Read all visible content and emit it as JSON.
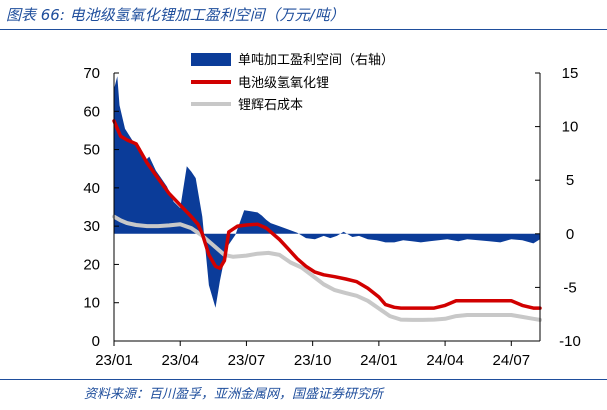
{
  "header": {
    "title": "图表 66:  电池级氢氧化锂加工盈利空间（万元/吨）"
  },
  "footer": {
    "source": "资料来源：百川盈孚，亚洲金属网，国盛证券研究所"
  },
  "chart_data": {
    "type": "area+line",
    "title": "电池级氢氧化锂加工盈利空间（万元/吨）",
    "x_tick_labels": [
      "23/01",
      "23/04",
      "23/07",
      "23/10",
      "24/01",
      "24/04",
      "24/07"
    ],
    "left_axis": {
      "ylim": [
        0,
        70
      ],
      "ticks": [
        "0",
        "10",
        "20",
        "30",
        "40",
        "50",
        "60",
        "70"
      ]
    },
    "right_axis": {
      "ylim": [
        -10,
        15
      ],
      "ticks": [
        "-10",
        "-5",
        "0",
        "5",
        "10",
        "15"
      ]
    },
    "legend": [
      "单吨加工盈利空间（右轴）",
      "电池级氢氧化锂",
      "锂辉石成本"
    ],
    "colors": {
      "profit": "#0b3c99",
      "lithium": "#d10000",
      "spodumene": "#c8c8c8"
    },
    "x_domain": [
      0,
      19.3
    ],
    "series": [
      {
        "name": "单吨加工盈利空间（右轴）",
        "axis": "right",
        "type": "area",
        "x": [
          0,
          0.15,
          0.25,
          0.5,
          0.9,
          1.2,
          1.4,
          1.6,
          1.9,
          2.1,
          2.4,
          2.7,
          3.0,
          3.3,
          3.5,
          3.7,
          4.0,
          4.3,
          4.6,
          4.8,
          5.1,
          5.5,
          5.9,
          6.2,
          6.5,
          6.7,
          6.9,
          7.1,
          7.5,
          7.9,
          8.3,
          8.7,
          9.1,
          9.5,
          9.8,
          10.1,
          10.4,
          10.8,
          11.1,
          11.5,
          11.9,
          12.3,
          12.7,
          13.1,
          13.5,
          13.9,
          14.3,
          14.7,
          15.1,
          15.6,
          16.0,
          16.5,
          17.0,
          17.5,
          18.0,
          18.5,
          19.0,
          19.3
        ],
        "values": [
          13.5,
          14.7,
          12.0,
          9.8,
          8.5,
          8.0,
          6.8,
          7.2,
          5.9,
          5.3,
          4.4,
          3.0,
          2.4,
          6.3,
          5.8,
          5.2,
          1.6,
          -4.8,
          -6.9,
          -4.4,
          -1.3,
          -0.1,
          2.2,
          2.1,
          2.0,
          1.7,
          1.3,
          1.0,
          0.7,
          0.4,
          0.1,
          -0.4,
          -0.5,
          -0.2,
          -0.4,
          -0.2,
          0.2,
          -0.3,
          -0.2,
          -0.5,
          -0.6,
          -0.8,
          -0.8,
          -0.6,
          -0.7,
          -0.8,
          -0.7,
          -0.6,
          -0.5,
          -0.7,
          -0.5,
          -0.6,
          -0.7,
          -0.8,
          -0.5,
          -0.6,
          -0.9,
          -0.5
        ]
      },
      {
        "name": "电池级氢氧化锂",
        "axis": "left",
        "type": "line",
        "x": [
          0,
          0.3,
          0.6,
          1.0,
          1.5,
          2.0,
          2.5,
          3.0,
          3.5,
          3.8,
          4.0,
          4.3,
          4.6,
          4.8,
          5.0,
          5.2,
          5.6,
          6.0,
          6.5,
          6.9,
          7.2,
          7.5,
          7.9,
          8.3,
          8.7,
          9.1,
          9.5,
          10.0,
          10.5,
          11.0,
          11.5,
          12.0,
          12.3,
          12.7,
          13.0,
          13.5,
          14.0,
          14.5,
          15.0,
          15.5,
          16.0,
          16.5,
          17.0,
          17.5,
          18.0,
          18.5,
          19.0,
          19.3
        ],
        "values": [
          57.5,
          53.5,
          52.5,
          51.5,
          46.5,
          42.5,
          38.5,
          35.5,
          32.5,
          30.5,
          28.0,
          22.5,
          19.5,
          19.0,
          21.0,
          28.5,
          30.0,
          30.3,
          30.5,
          29.5,
          28.0,
          26.5,
          24.0,
          21.5,
          19.5,
          18.0,
          17.3,
          16.8,
          16.2,
          15.5,
          13.8,
          11.5,
          9.5,
          8.8,
          8.6,
          8.6,
          8.6,
          8.6,
          9.3,
          10.5,
          10.5,
          10.5,
          10.5,
          10.5,
          10.5,
          9.3,
          8.6,
          8.6
        ]
      },
      {
        "name": "锂辉石成本",
        "axis": "left",
        "type": "line",
        "x": [
          0,
          0.3,
          0.6,
          1.0,
          1.5,
          2.0,
          2.5,
          3.0,
          3.5,
          4.0,
          4.5,
          5.0,
          5.4,
          6.0,
          6.5,
          7.0,
          7.5,
          8.0,
          8.5,
          9.0,
          9.5,
          10.0,
          10.5,
          11.0,
          11.5,
          12.0,
          12.5,
          13.0,
          13.5,
          14.0,
          14.5,
          15.0,
          15.5,
          16.0,
          16.5,
          17.0,
          17.5,
          18.0,
          18.5,
          19.0,
          19.3
        ],
        "values": [
          32.5,
          31.5,
          30.8,
          30.3,
          30.0,
          30.0,
          30.2,
          30.5,
          29.5,
          27.5,
          25.0,
          22.5,
          22.0,
          22.3,
          22.8,
          23.0,
          22.5,
          20.5,
          19.2,
          17.0,
          14.8,
          13.3,
          12.5,
          11.8,
          10.5,
          8.5,
          6.5,
          5.6,
          5.5,
          5.5,
          5.6,
          5.8,
          6.5,
          6.8,
          6.8,
          6.8,
          6.8,
          6.8,
          6.3,
          5.8,
          5.5
        ]
      }
    ]
  }
}
